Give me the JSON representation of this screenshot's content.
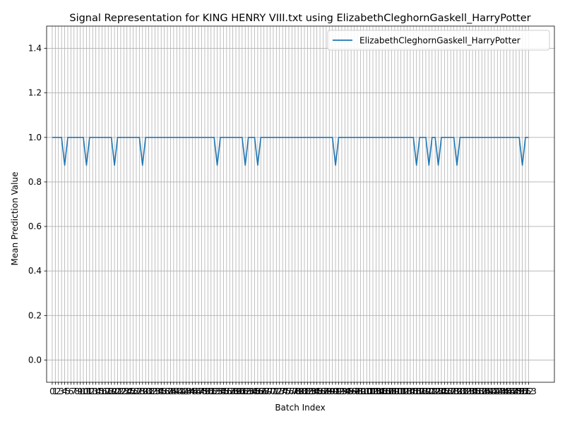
{
  "chart_data": {
    "type": "line",
    "title": "Signal Representation for KING HENRY VIII.txt using ElizabethCleghornGaskell_HarryPotter",
    "xlabel": "Batch Index",
    "ylabel": "Mean Prediction Value",
    "xlim": [
      -1.8,
      161.3
    ],
    "ylim": [
      -0.1,
      1.5
    ],
    "grid": true,
    "legend_position": "top-right",
    "x_ticks": {
      "start": 0,
      "end": 153,
      "step": 1,
      "note_labels_overlap": true
    },
    "y_ticks": [
      0.0,
      0.2,
      0.4,
      0.6,
      0.8,
      1.0,
      1.2,
      1.4
    ],
    "y_tick_labels": [
      "0.0",
      "0.2",
      "0.4",
      "0.6",
      "0.8",
      "1.0",
      "1.2",
      "1.4"
    ],
    "series": [
      {
        "name": "ElizabethCleghornGaskell_HarryPotter",
        "color": "#1f77b4",
        "x_start": 0,
        "count": 154,
        "baseline": 1.0,
        "dips": [
          {
            "x": 4,
            "y": 0.875
          },
          {
            "x": 11,
            "y": 0.875
          },
          {
            "x": 20,
            "y": 0.875
          },
          {
            "x": 29,
            "y": 0.875
          },
          {
            "x": 53,
            "y": 0.875
          },
          {
            "x": 62,
            "y": 0.875
          },
          {
            "x": 66,
            "y": 0.875
          },
          {
            "x": 91,
            "y": 0.875
          },
          {
            "x": 117,
            "y": 0.875
          },
          {
            "x": 121,
            "y": 0.875
          },
          {
            "x": 124,
            "y": 0.875
          },
          {
            "x": 130,
            "y": 0.875
          },
          {
            "x": 151,
            "y": 0.875
          }
        ]
      }
    ]
  }
}
